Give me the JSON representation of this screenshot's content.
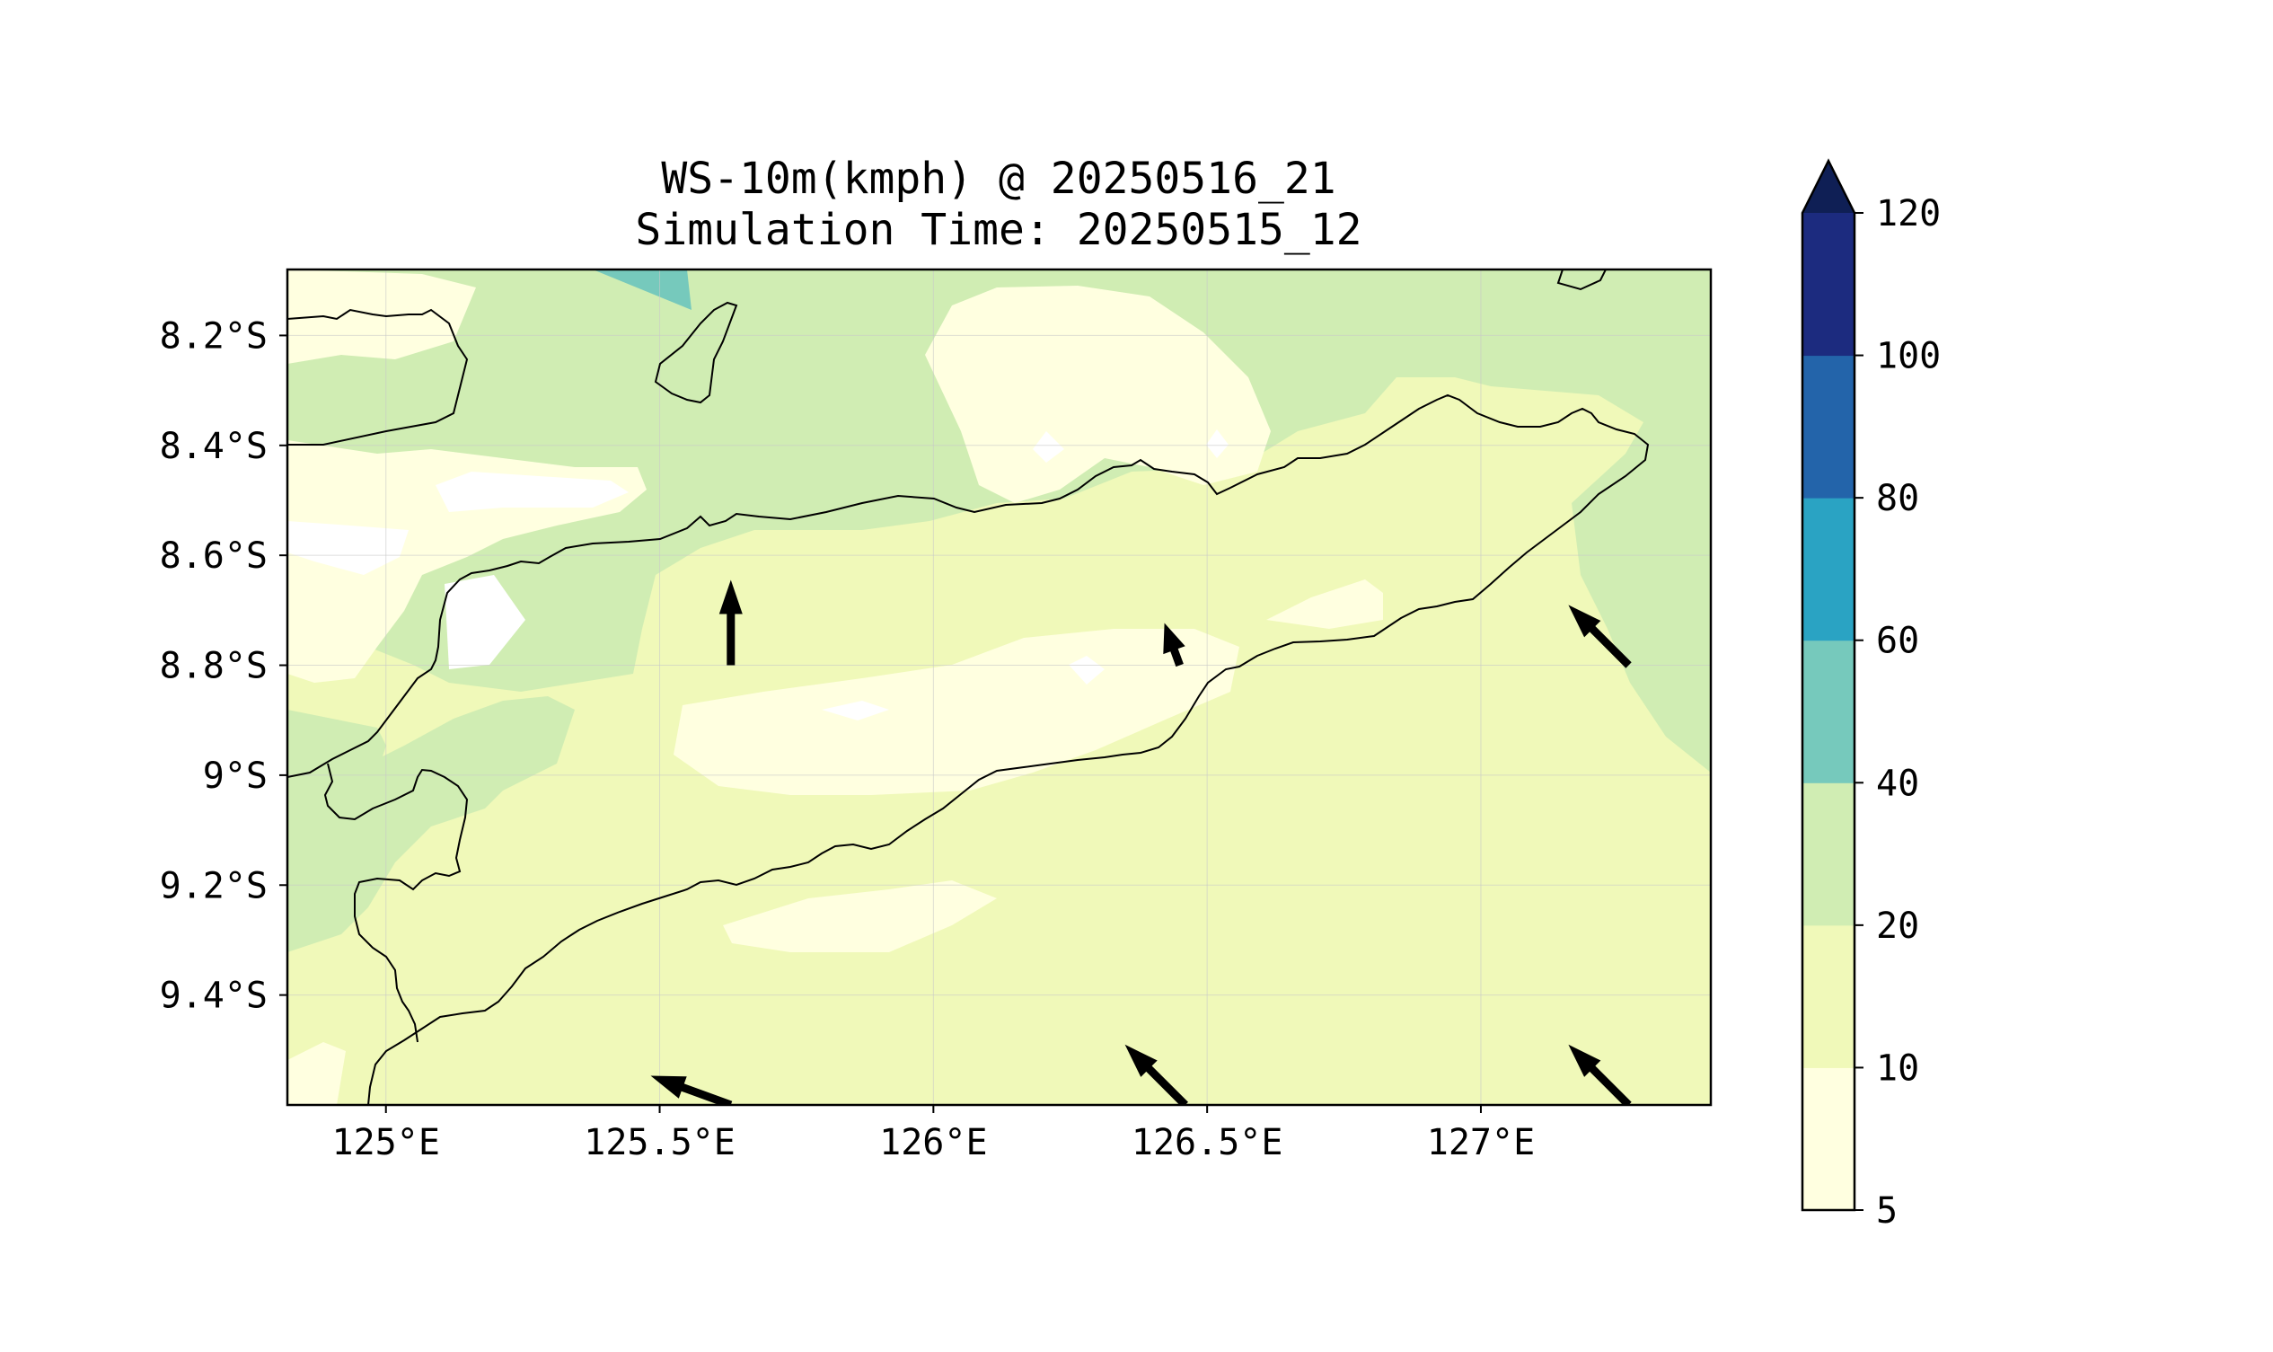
{
  "title_line1": "WS-10m(kmph) @ 20250516_21",
  "title_line2": "Simulation Time: 20250515_12",
  "map": {
    "lon_range": [
      124.82,
      127.42
    ],
    "lat_range": [
      -9.6,
      -8.08
    ],
    "lon_ticks": [
      {
        "value": 125.0,
        "label": "125°E"
      },
      {
        "value": 125.5,
        "label": "125.5°E"
      },
      {
        "value": 126.0,
        "label": "126°E"
      },
      {
        "value": 126.5,
        "label": "126.5°E"
      },
      {
        "value": 127.0,
        "label": "127°E"
      }
    ],
    "lat_ticks": [
      {
        "value": -8.2,
        "label": "8.2°S"
      },
      {
        "value": -8.4,
        "label": "8.4°S"
      },
      {
        "value": -8.6,
        "label": "8.6°S"
      },
      {
        "value": -8.8,
        "label": "8.8°S"
      },
      {
        "value": -9.0,
        "label": "9°S"
      },
      {
        "value": -9.2,
        "label": "9.2°S"
      },
      {
        "value": -9.4,
        "label": "9.4°S"
      }
    ],
    "grid": true,
    "background_level_color": "#f0f9b9",
    "wind_arrows": [
      {
        "lon": 125.63,
        "lat": -8.8,
        "direction": "north",
        "length": "long"
      },
      {
        "lon": 126.45,
        "lat": -8.8,
        "direction": "north-northwest",
        "length": "short"
      },
      {
        "lon": 127.27,
        "lat": -8.8,
        "direction": "northwest",
        "length": "long"
      },
      {
        "lon": 125.63,
        "lat": -9.6,
        "direction": "west-northwest",
        "length": "long"
      },
      {
        "lon": 126.46,
        "lat": -9.6,
        "direction": "northwest",
        "length": "long"
      },
      {
        "lon": 127.27,
        "lat": -9.6,
        "direction": "northwest",
        "length": "long"
      }
    ]
  },
  "colorbar": {
    "levels": [
      {
        "from": 5,
        "to": 10,
        "color": "#ffffe0"
      },
      {
        "from": 10,
        "to": 20,
        "color": "#f0f9b9"
      },
      {
        "from": 20,
        "to": 40,
        "color": "#d0edb3"
      },
      {
        "from": 40,
        "to": 60,
        "color": "#76c9bc"
      },
      {
        "from": 60,
        "to": 80,
        "color": "#2aa3c3"
      },
      {
        "from": 80,
        "to": 100,
        "color": "#2364aa"
      },
      {
        "from": 100,
        "to": 120,
        "color": "#1c2b7f"
      }
    ],
    "extend_color": "#0f1f55",
    "tick_labels": [
      "5",
      "10",
      "20",
      "40",
      "60",
      "80",
      "100",
      "120"
    ]
  }
}
